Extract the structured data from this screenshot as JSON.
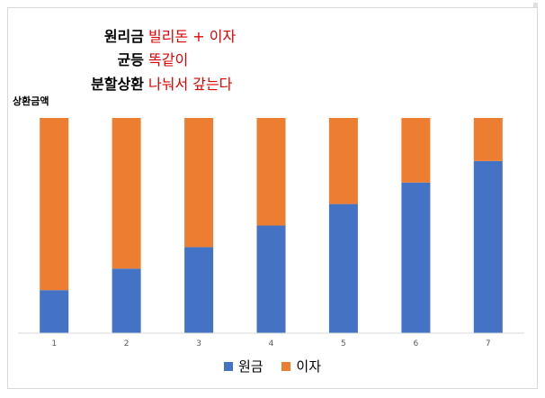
{
  "title_lines": [
    {
      "key": "원리금",
      "value": "빌리돈 + 이자"
    },
    {
      "key": "균등",
      "value": "똑같이"
    },
    {
      "key": "분할상환",
      "value": "나눠서 갚는다"
    }
  ],
  "chart_data": {
    "type": "bar",
    "stacked": true,
    "categories": [
      "1",
      "2",
      "3",
      "4",
      "5",
      "6",
      "7"
    ],
    "series": [
      {
        "name": "원금",
        "color": "#4472c4",
        "values": [
          20,
          30,
          40,
          50,
          60,
          70,
          80
        ]
      },
      {
        "name": "이자",
        "color": "#ed7d31",
        "values": [
          80,
          70,
          60,
          50,
          40,
          30,
          20
        ]
      }
    ],
    "ylabel": "상환금액",
    "xlabel": "",
    "ylim": [
      0,
      100
    ],
    "grid": false,
    "legend": "bottom"
  }
}
